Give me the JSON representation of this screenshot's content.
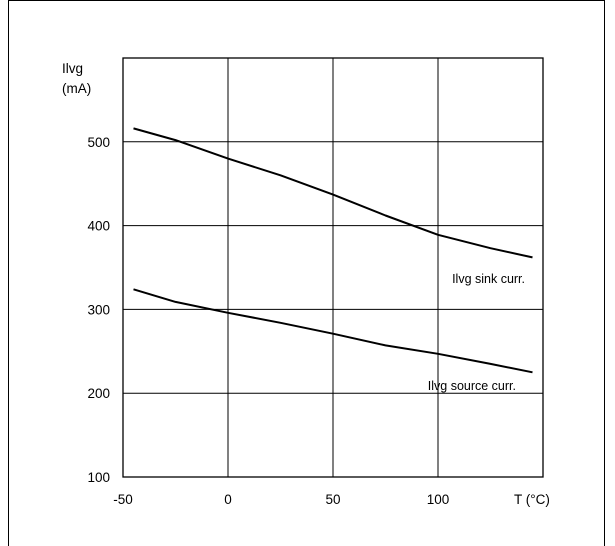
{
  "chart_data": {
    "type": "line",
    "title": "",
    "xlabel": "T (°C)",
    "ylabel_line1": "Ilvg",
    "ylabel_line2": "(mA)",
    "xlim": [
      -50,
      150
    ],
    "ylim": [
      100,
      600
    ],
    "x_ticks": [
      -50,
      0,
      50,
      100
    ],
    "y_ticks": [
      100,
      200,
      300,
      400,
      500
    ],
    "grid": true,
    "series": [
      {
        "name": "Ilvg sink curr.",
        "x": [
          -45,
          -25,
          0,
          25,
          50,
          75,
          100,
          125,
          145
        ],
        "y": [
          516,
          502,
          480,
          460,
          437,
          412,
          389,
          373,
          362
        ]
      },
      {
        "name": "Ilvg source curr.",
        "x": [
          -45,
          -25,
          0,
          25,
          50,
          75,
          100,
          125,
          145
        ],
        "y": [
          324,
          309,
          296,
          284,
          271,
          257,
          247,
          235,
          225
        ]
      }
    ]
  }
}
